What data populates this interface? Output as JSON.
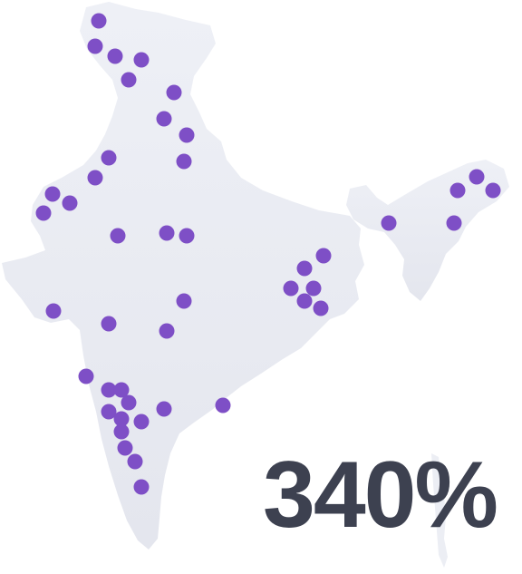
{
  "map": {
    "region": "India",
    "land_color": "#e9eaf1",
    "marker_color": "#7e4fc6",
    "marker_count": 47
  },
  "stat": {
    "value": "340%",
    "color": "#3d4150"
  }
}
